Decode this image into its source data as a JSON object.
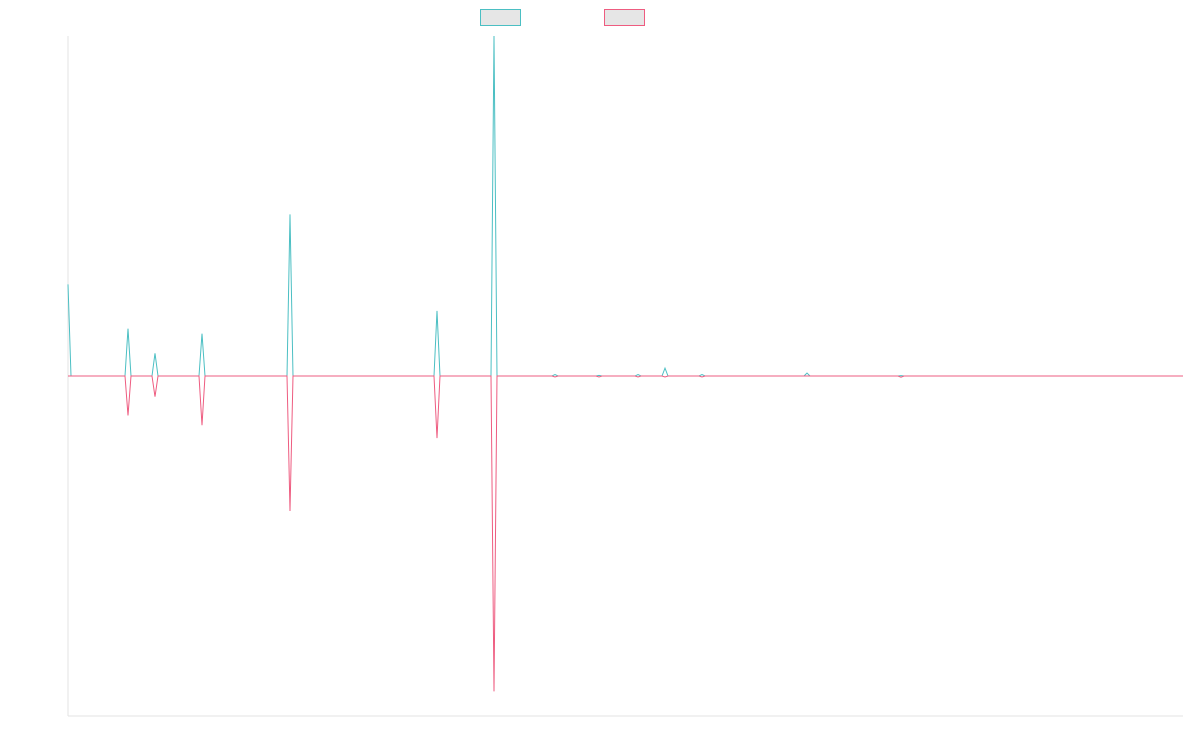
{
  "chart_data": {
    "type": "line",
    "title": "",
    "xlabel": "",
    "ylabel": "",
    "grid": false,
    "legend": "top-center",
    "ylim": [
      -345,
      345
    ],
    "xlim": [
      0,
      1115
    ],
    "series": [
      {
        "color": "#4bbfc3",
        "points": [
          [
            0,
            93
          ],
          [
            3,
            0
          ],
          [
            57,
            0
          ],
          [
            60,
            48
          ],
          [
            63,
            0
          ],
          [
            84,
            0
          ],
          [
            87,
            23
          ],
          [
            90,
            0
          ],
          [
            131,
            0
          ],
          [
            134,
            43
          ],
          [
            137,
            0
          ],
          [
            219,
            0
          ],
          [
            222,
            164
          ],
          [
            225,
            0
          ],
          [
            366,
            0
          ],
          [
            369,
            66
          ],
          [
            372,
            0
          ],
          [
            423,
            0
          ],
          [
            426,
            345
          ],
          [
            429,
            0
          ],
          [
            484,
            0
          ],
          [
            487,
            1.5
          ],
          [
            490,
            0
          ],
          [
            528,
            0
          ],
          [
            531,
            0.6
          ],
          [
            534,
            0
          ],
          [
            567,
            0
          ],
          [
            570,
            1.5
          ],
          [
            573,
            0
          ],
          [
            594,
            0
          ],
          [
            597,
            8
          ],
          [
            600,
            0
          ],
          [
            631,
            0
          ],
          [
            634,
            1.5
          ],
          [
            637,
            0
          ],
          [
            736,
            0
          ],
          [
            739,
            3
          ],
          [
            742,
            0
          ],
          [
            830,
            0
          ],
          [
            833,
            0.4
          ],
          [
            836,
            0
          ],
          [
            1115,
            0
          ]
        ]
      },
      {
        "color": "#ee5c80",
        "points": [
          [
            0,
            0
          ],
          [
            57,
            0
          ],
          [
            60,
            -40
          ],
          [
            63,
            0
          ],
          [
            84,
            0
          ],
          [
            87,
            -21
          ],
          [
            90,
            0
          ],
          [
            131,
            0
          ],
          [
            134,
            -50
          ],
          [
            137,
            0
          ],
          [
            219,
            0
          ],
          [
            222,
            -137
          ],
          [
            225,
            0
          ],
          [
            366,
            0
          ],
          [
            369,
            -63
          ],
          [
            372,
            0
          ],
          [
            423,
            0
          ],
          [
            426,
            -320
          ],
          [
            429,
            0
          ],
          [
            484,
            0
          ],
          [
            487,
            -1
          ],
          [
            490,
            0
          ],
          [
            528,
            0
          ],
          [
            531,
            -1
          ],
          [
            534,
            0
          ],
          [
            567,
            0
          ],
          [
            570,
            -1
          ],
          [
            573,
            0
          ],
          [
            594,
            0
          ],
          [
            597,
            -1
          ],
          [
            600,
            0
          ],
          [
            631,
            0
          ],
          [
            634,
            -1
          ],
          [
            637,
            0
          ],
          [
            830,
            0
          ],
          [
            833,
            -1.2
          ],
          [
            836,
            0
          ],
          [
            1115,
            0
          ]
        ]
      }
    ]
  }
}
